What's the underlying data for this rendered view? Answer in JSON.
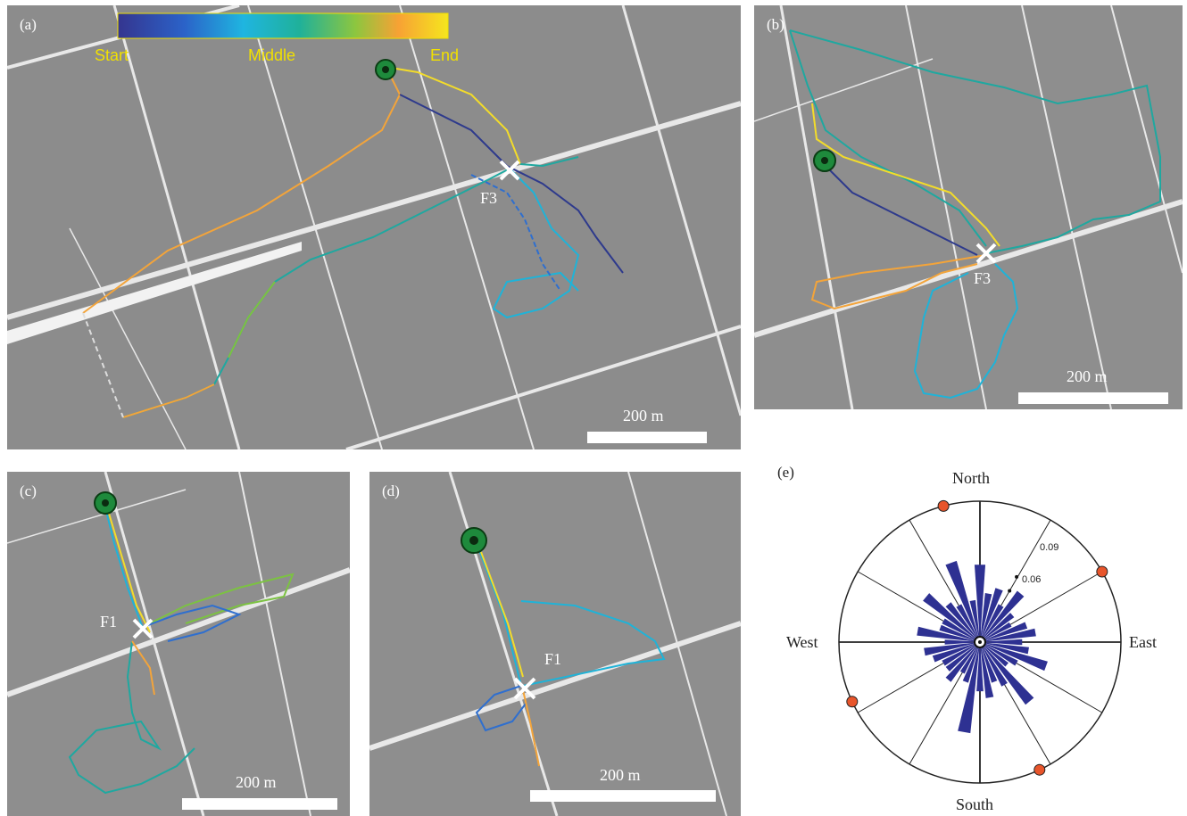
{
  "panels": {
    "a": {
      "label": "(a)",
      "site": "F3",
      "scale": "200 m"
    },
    "b": {
      "label": "(b)",
      "site": "F3",
      "scale": "200 m"
    },
    "c": {
      "label": "(c)",
      "site": "F1",
      "scale": "200 m"
    },
    "d": {
      "label": "(d)",
      "site": "F1",
      "scale": "200 m"
    },
    "e": {
      "label": "(e)"
    }
  },
  "colorbar": {
    "start": "Start",
    "middle": "Middle",
    "end": "End",
    "colors": [
      "#35358f",
      "#2b62c8",
      "#1fb5e0",
      "#1fb19a",
      "#8dc63f",
      "#f7a234",
      "#f5e61e"
    ]
  },
  "rose": {
    "north": "North",
    "south": "South",
    "east": "East",
    "west": "West",
    "ring_labels": [
      "0.09",
      "0.06"
    ],
    "bar_color": "#2e3192",
    "marker_color": "#e8552b",
    "marker_directions_deg": [
      345,
      60,
      155,
      245
    ]
  },
  "track_colors": {
    "navy": "#2e3a8c",
    "blue": "#2f6fcf",
    "cyan": "#1fb3d8",
    "teal": "#1fa8a0",
    "green": "#7cc242",
    "orange": "#f3a43a",
    "yellow": "#f3dc2a"
  }
}
